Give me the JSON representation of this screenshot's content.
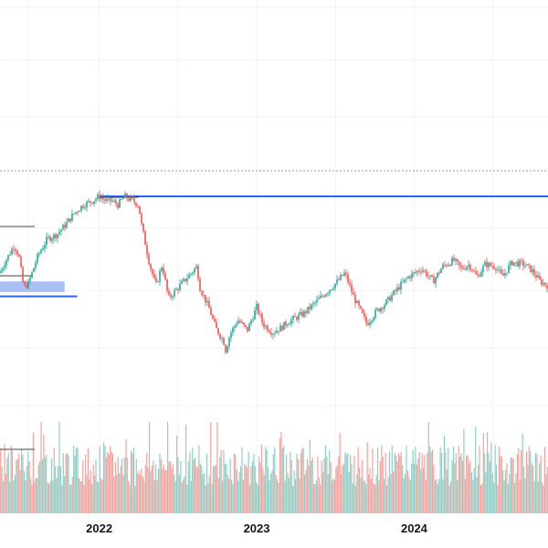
{
  "chart_data": {
    "type": "candlestick",
    "grid": true,
    "x_ticks": [
      "2022",
      "2023",
      "2024"
    ],
    "x_range": [
      2021.37,
      2024.85
    ],
    "y_range": [
      0,
      100
    ],
    "colors": {
      "up": "#26a69a",
      "down": "#ef5350",
      "volume_up": "#8fd0c6",
      "volume_down": "#f4a3a0",
      "resistance": "#2962ff",
      "support_zone": "#a9c0f5",
      "dotted_line": "#9598a1",
      "grid": "#f0f3fa"
    },
    "price_path": [
      [
        2021.37,
        52
      ],
      [
        2021.4,
        57
      ],
      [
        2021.46,
        65
      ],
      [
        2021.49,
        60
      ],
      [
        2021.52,
        45
      ],
      [
        2021.55,
        47
      ],
      [
        2021.61,
        60
      ],
      [
        2021.67,
        68
      ],
      [
        2021.73,
        70
      ],
      [
        2021.79,
        75
      ],
      [
        2021.84,
        80
      ],
      [
        2021.9,
        84
      ],
      [
        2021.96,
        86
      ],
      [
        2022.0,
        88
      ],
      [
        2022.04,
        86
      ],
      [
        2022.08,
        86
      ],
      [
        2022.12,
        84
      ],
      [
        2022.16,
        88
      ],
      [
        2022.21,
        86
      ],
      [
        2022.25,
        84
      ],
      [
        2022.27,
        74
      ],
      [
        2022.32,
        56
      ],
      [
        2022.36,
        46
      ],
      [
        2022.4,
        56
      ],
      [
        2022.44,
        40
      ],
      [
        2022.5,
        45
      ],
      [
        2022.56,
        50
      ],
      [
        2022.62,
        55
      ],
      [
        2022.64,
        45
      ],
      [
        2022.7,
        35
      ],
      [
        2022.74,
        26
      ],
      [
        2022.79,
        20
      ],
      [
        2022.8,
        15
      ],
      [
        2022.83,
        23
      ],
      [
        2022.88,
        30
      ],
      [
        2022.94,
        25
      ],
      [
        2023.0,
        36
      ],
      [
        2023.04,
        28
      ],
      [
        2023.1,
        24
      ],
      [
        2023.15,
        26
      ],
      [
        2023.2,
        29
      ],
      [
        2023.3,
        33
      ],
      [
        2023.4,
        40
      ],
      [
        2023.5,
        47
      ],
      [
        2023.56,
        52
      ],
      [
        2023.62,
        40
      ],
      [
        2023.7,
        28
      ],
      [
        2023.76,
        34
      ],
      [
        2023.82,
        38
      ],
      [
        2023.9,
        45
      ],
      [
        2023.96,
        50
      ],
      [
        2024.05,
        54
      ],
      [
        2024.12,
        48
      ],
      [
        2024.18,
        55
      ],
      [
        2024.25,
        58
      ],
      [
        2024.3,
        54
      ],
      [
        2024.35,
        56
      ],
      [
        2024.4,
        50
      ],
      [
        2024.45,
        56
      ],
      [
        2024.52,
        55
      ],
      [
        2024.56,
        50
      ],
      [
        2024.62,
        57
      ],
      [
        2024.7,
        56
      ],
      [
        2024.75,
        53
      ],
      [
        2024.8,
        48
      ],
      [
        2024.85,
        46
      ]
    ],
    "resistance_level": 88,
    "support_zone": [
      43,
      48
    ],
    "support_level": 41,
    "dotted_level": 100
  }
}
